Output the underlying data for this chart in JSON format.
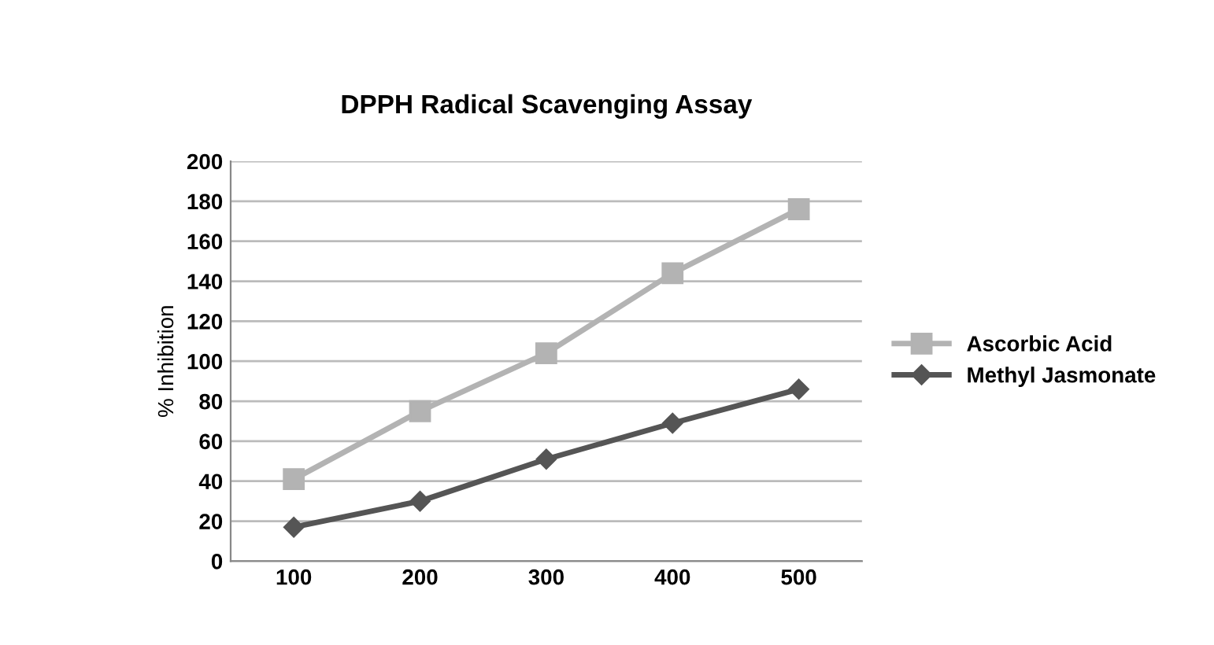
{
  "chart_data": {
    "type": "line",
    "title": "DPPH Radical Scavenging Assay",
    "ylabel": "% Inhibition",
    "categories": [
      "100",
      "200",
      "300",
      "400",
      "500"
    ],
    "series": [
      {
        "name": "Ascorbic Acid",
        "color": "#b3b3b3",
        "marker": "square",
        "values": [
          41,
          75,
          104,
          144,
          176
        ]
      },
      {
        "name": "Methyl Jasmonate",
        "color": "#555555",
        "marker": "diamond",
        "values": [
          17,
          30,
          51,
          69,
          86
        ]
      }
    ],
    "ylim": [
      0,
      200
    ],
    "yticks": [
      0,
      20,
      40,
      60,
      80,
      100,
      120,
      140,
      160,
      180,
      200
    ],
    "grid": "y",
    "legend": "right",
    "line_style": "solid"
  }
}
